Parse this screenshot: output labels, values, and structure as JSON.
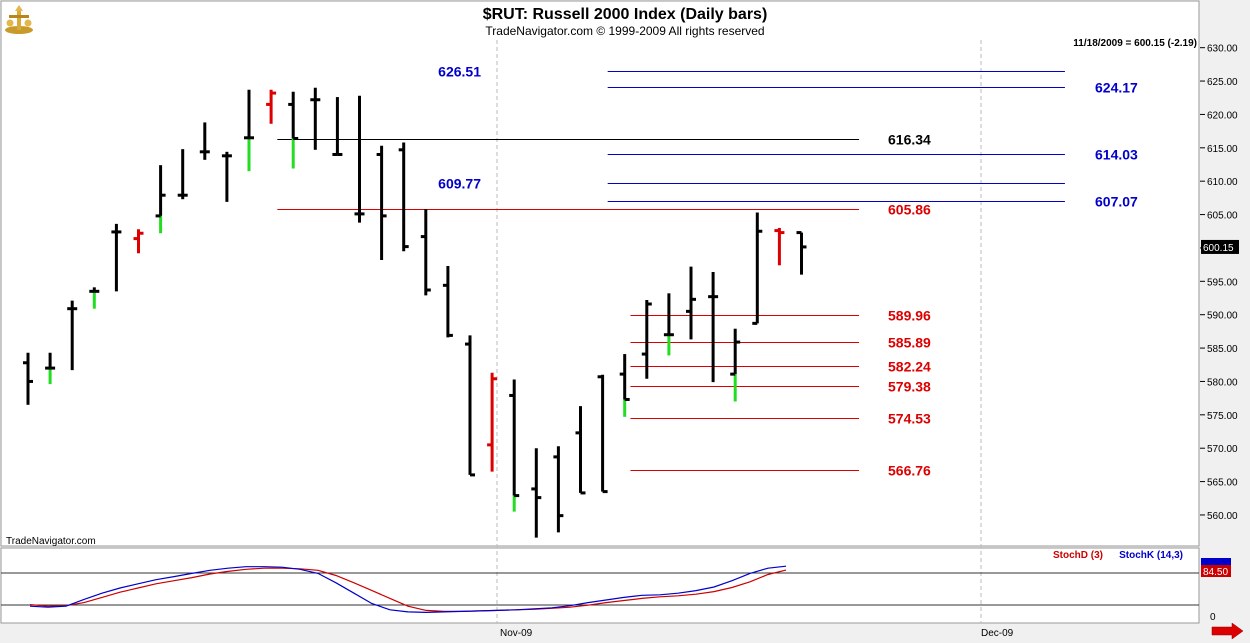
{
  "title": "$RUT:  Russell 2000 Index  (Daily bars)",
  "copyright": "TradeNavigator.com © 1999-2009 All rights reserved",
  "watermark": "TradeNavigator.com",
  "last_info": "11/18/2009 = 600.15 (-2.19)",
  "price_tag": "600.15",
  "colors": {
    "up_bar": "#000000",
    "green": "#22dd22",
    "red": "#dd0000",
    "blue_level": "#0000cc",
    "black_level": "#000000",
    "stochD": "#cc0000",
    "stochK": "#0000cc"
  },
  "chart_data": {
    "type": "ohlc",
    "ylim": [
      555.5,
      631
    ],
    "y_ticks": [
      560,
      565,
      570,
      575,
      580,
      585,
      590,
      595,
      600,
      605,
      610,
      615,
      620,
      625,
      630
    ],
    "x_labels": [
      "Nov-09",
      "Dec-09"
    ],
    "bars": [
      {
        "h": 584.3,
        "l": 576.5,
        "o": 582.8,
        "c": 580.0,
        "col": "k",
        "tick": "k"
      },
      {
        "h": 584.3,
        "l": 579.6,
        "o": 582.0,
        "c": 582.0,
        "col": "g",
        "tick": "k"
      },
      {
        "h": 592.1,
        "l": 581.7,
        "o": 590.9,
        "c": 590.9,
        "col": "k",
        "tick": "k"
      },
      {
        "h": 594.1,
        "l": 590.9,
        "o": 593.5,
        "c": 593.5,
        "col": "g",
        "tick": "k"
      },
      {
        "h": 603.6,
        "l": 593.5,
        "o": 602.4,
        "c": 602.4,
        "col": "k",
        "tick": "k"
      },
      {
        "h": 602.8,
        "l": 599.2,
        "o": 601.4,
        "c": 602.2,
        "col": "r",
        "tick": "r"
      },
      {
        "h": 612.4,
        "l": 602.2,
        "o": 604.8,
        "c": 607.9,
        "col": "g",
        "tick": "k"
      },
      {
        "h": 614.8,
        "l": 607.3,
        "o": 607.9,
        "c": 607.9,
        "col": "k",
        "tick": "k"
      },
      {
        "h": 618.8,
        "l": 613.2,
        "o": 614.4,
        "c": 614.4,
        "col": "k",
        "tick": "k"
      },
      {
        "h": 614.4,
        "l": 606.9,
        "o": 613.8,
        "c": 613.8,
        "col": "k",
        "tick": "k"
      },
      {
        "h": 623.7,
        "l": 611.5,
        "o": 616.5,
        "c": 616.5,
        "col": "g",
        "tick": "k"
      },
      {
        "h": 623.7,
        "l": 618.6,
        "o": 621.5,
        "c": 623.2,
        "col": "r",
        "tick": "r"
      },
      {
        "h": 623.4,
        "l": 611.9,
        "o": 621.5,
        "c": 616.4,
        "col": "g",
        "tick": "k"
      },
      {
        "h": 624.0,
        "l": 614.7,
        "o": 622.2,
        "c": 622.2,
        "col": "k",
        "tick": "k"
      },
      {
        "h": 622.6,
        "l": 614.0,
        "o": 614.0,
        "c": 614.0,
        "col": "k",
        "tick": "k"
      },
      {
        "h": 622.8,
        "l": 603.8,
        "o": 605.1,
        "c": 605.1,
        "col": "k",
        "tick": "k"
      },
      {
        "h": 615.3,
        "l": 598.2,
        "o": 614.0,
        "c": 604.8,
        "col": "k",
        "tick": "k"
      },
      {
        "h": 615.8,
        "l": 599.5,
        "o": 614.7,
        "c": 600.2,
        "col": "k",
        "tick": "k"
      },
      {
        "h": 605.8,
        "l": 592.9,
        "o": 601.7,
        "c": 593.7,
        "col": "k",
        "tick": "k"
      },
      {
        "h": 597.3,
        "l": 586.6,
        "o": 594.4,
        "c": 586.9,
        "col": "k",
        "tick": "k"
      },
      {
        "h": 586.9,
        "l": 566.0,
        "o": 585.6,
        "c": 566.0,
        "col": "g",
        "tick": "k"
      },
      {
        "h": 581.3,
        "l": 566.5,
        "o": 570.5,
        "c": 580.4,
        "col": "r",
        "tick": "r"
      },
      {
        "h": 580.3,
        "l": 560.5,
        "o": 577.9,
        "c": 562.9,
        "col": "g",
        "tick": "k"
      },
      {
        "h": 570.0,
        "l": 556.6,
        "o": 563.9,
        "c": 562.6,
        "col": "k",
        "tick": "k"
      },
      {
        "h": 570.3,
        "l": 557.4,
        "o": 568.7,
        "c": 559.9,
        "col": "k",
        "tick": "k"
      },
      {
        "h": 576.3,
        "l": 563.3,
        "o": 572.3,
        "c": 563.3,
        "col": "k",
        "tick": "k"
      },
      {
        "h": 581.0,
        "l": 563.5,
        "o": 580.7,
        "c": 563.5,
        "col": "k",
        "tick": "k"
      },
      {
        "h": 584.1,
        "l": 574.7,
        "o": 581.1,
        "c": 577.3,
        "col": "g",
        "tick": "k"
      },
      {
        "h": 592.2,
        "l": 580.4,
        "o": 584.1,
        "c": 591.6,
        "col": "k",
        "tick": "k"
      },
      {
        "h": 593.2,
        "l": 583.9,
        "o": 587.0,
        "c": 587.0,
        "col": "g",
        "tick": "k"
      },
      {
        "h": 597.2,
        "l": 586.3,
        "o": 590.5,
        "c": 592.3,
        "col": "k",
        "tick": "k"
      },
      {
        "h": 596.4,
        "l": 579.9,
        "o": 592.7,
        "c": 592.7,
        "col": "k",
        "tick": "k"
      },
      {
        "h": 587.9,
        "l": 577.0,
        "o": 581.1,
        "c": 585.9,
        "col": "g",
        "tick": "k"
      },
      {
        "h": 605.3,
        "l": 588.7,
        "o": 588.7,
        "c": 602.5,
        "col": "k",
        "tick": "k"
      },
      {
        "h": 603.0,
        "l": 597.4,
        "o": 602.6,
        "c": 602.3,
        "col": "r",
        "tick": "r"
      },
      {
        "h": 602.3,
        "l": 596.0,
        "o": 602.3,
        "c": 600.15,
        "col": "k",
        "tick": "k"
      }
    ],
    "levels": [
      {
        "value": 626.51,
        "label": "626.51",
        "color": "blue",
        "x0": 0.506,
        "x1": 0.888,
        "label_side": "left"
      },
      {
        "value": 624.17,
        "label": "624.17",
        "color": "blue",
        "x0": 0.506,
        "x1": 0.888,
        "label_side": "right"
      },
      {
        "value": 616.34,
        "label": "616.34",
        "color": "black",
        "x0": 0.23,
        "x1": 0.716,
        "label_side": "right"
      },
      {
        "value": 614.03,
        "label": "614.03",
        "color": "blue",
        "x0": 0.506,
        "x1": 0.888,
        "label_side": "right"
      },
      {
        "value": 609.77,
        "label": "609.77",
        "color": "blue",
        "x0": 0.506,
        "x1": 0.888,
        "label_side": "left"
      },
      {
        "value": 607.07,
        "label": "607.07",
        "color": "blue",
        "x0": 0.506,
        "x1": 0.888,
        "label_side": "right"
      },
      {
        "value": 605.86,
        "label": "605.86",
        "color": "red",
        "x0": 0.23,
        "x1": 0.716,
        "label_side": "right"
      },
      {
        "value": 589.96,
        "label": "589.96",
        "color": "red",
        "x0": 0.525,
        "x1": 0.716,
        "label_side": "right"
      },
      {
        "value": 585.89,
        "label": "585.89",
        "color": "red",
        "x0": 0.525,
        "x1": 0.716,
        "label_side": "right"
      },
      {
        "value": 582.24,
        "label": "582.24",
        "color": "red",
        "x0": 0.525,
        "x1": 0.716,
        "label_side": "right"
      },
      {
        "value": 579.38,
        "label": "579.38",
        "color": "red",
        "x0": 0.525,
        "x1": 0.716,
        "label_side": "right"
      },
      {
        "value": 574.53,
        "label": "574.53",
        "color": "red",
        "x0": 0.525,
        "x1": 0.716,
        "label_side": "right"
      },
      {
        "value": 566.76,
        "label": "566.76",
        "color": "red",
        "x0": 0.525,
        "x1": 0.716,
        "label_side": "right"
      }
    ],
    "stochastic": {
      "d_label": "StochD (3)",
      "k_label": "StochK (14,3)",
      "tick_label": "0",
      "d_value_tag": "84.50",
      "k": [
        15,
        13,
        15,
        28,
        40,
        50,
        58,
        66,
        72,
        78,
        84,
        88,
        91,
        91,
        90,
        86,
        78,
        60,
        40,
        20,
        8,
        4,
        3,
        4,
        5,
        6,
        7,
        8,
        10,
        12,
        16,
        22,
        27,
        32,
        36,
        37,
        40,
        45,
        52,
        64,
        78,
        88,
        92
      ],
      "d": [
        18,
        15,
        16,
        22,
        32,
        42,
        50,
        58,
        64,
        70,
        77,
        82,
        86,
        88,
        88,
        87,
        84,
        74,
        60,
        45,
        30,
        15,
        7,
        5,
        5,
        6,
        7,
        8,
        9,
        11,
        13,
        17,
        22,
        26,
        30,
        33,
        35,
        38,
        43,
        51,
        62,
        76,
        84.5
      ]
    }
  }
}
